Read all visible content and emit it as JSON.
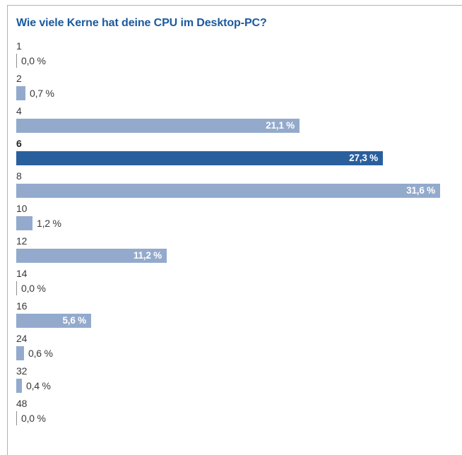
{
  "panel": {
    "title": "Wie viele Kerne hat deine CPU im Desktop-PC?"
  },
  "colors": {
    "bar": "#93aacc",
    "bar_highlight": "#2a5f9e",
    "zero_tick": "#8f8f8f",
    "title": "#1a599e",
    "label": "#383838",
    "value_inside": "#ffffff",
    "border": "#b1b1b1"
  },
  "chart_data": {
    "type": "bar",
    "orientation": "horizontal",
    "title": "Wie viele Kerne hat deine CPU im Desktop-PC?",
    "categories": [
      "1",
      "2",
      "4",
      "6",
      "8",
      "10",
      "12",
      "14",
      "16",
      "24",
      "32",
      "48"
    ],
    "values": [
      0.0,
      0.7,
      21.1,
      27.3,
      31.6,
      1.2,
      11.2,
      0.0,
      5.6,
      0.6,
      0.4,
      0.0
    ],
    "value_labels": [
      "0,0 %",
      "0,7 %",
      "21,1 %",
      "27,3 %",
      "31,6 %",
      "1,2 %",
      "11,2 %",
      "0,0 %",
      "5,6 %",
      "0,6 %",
      "0,4 %",
      "0,0 %"
    ],
    "highlighted_category": "6",
    "xlim": [
      0,
      31.6
    ],
    "grid": false,
    "legend": "none"
  }
}
